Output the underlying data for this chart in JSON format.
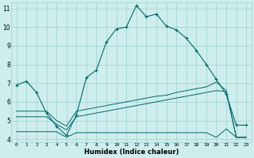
{
  "xlabel": "Humidex (Indice chaleur)",
  "bg_color": "#ceeeed",
  "grid_color": "#a0cece",
  "line_color": "#006868",
  "xlim": [
    -0.5,
    23.5
  ],
  "ylim": [
    3.85,
    11.3
  ],
  "xticks": [
    0,
    1,
    2,
    3,
    4,
    5,
    6,
    7,
    8,
    9,
    10,
    11,
    12,
    13,
    14,
    15,
    16,
    17,
    18,
    19,
    20,
    21,
    22,
    23
  ],
  "yticks": [
    4,
    5,
    6,
    7,
    8,
    9,
    10,
    11
  ],
  "curve1_x": [
    0,
    1,
    2,
    3,
    4,
    5,
    6,
    7,
    8,
    9,
    10,
    11,
    12,
    13,
    14,
    15,
    16,
    17,
    18,
    19,
    20,
    21,
    22,
    23
  ],
  "curve1_y": [
    6.9,
    7.1,
    6.5,
    5.4,
    4.7,
    4.2,
    5.3,
    7.3,
    7.7,
    9.2,
    9.9,
    10.0,
    11.15,
    10.55,
    10.7,
    10.05,
    9.85,
    9.4,
    8.75,
    8.0,
    7.2,
    6.4,
    4.75,
    4.75
  ],
  "curve2_x": [
    0,
    1,
    2,
    3,
    4,
    5,
    6,
    7,
    8,
    9,
    10,
    11,
    12,
    13,
    14,
    15,
    16,
    17,
    18,
    19,
    20,
    21,
    22,
    23
  ],
  "curve2_y": [
    5.5,
    5.5,
    5.5,
    5.5,
    5.0,
    4.7,
    5.5,
    5.6,
    5.7,
    5.8,
    5.9,
    6.0,
    6.1,
    6.2,
    6.3,
    6.35,
    6.5,
    6.6,
    6.7,
    6.8,
    7.05,
    6.6,
    4.1,
    4.1
  ],
  "curve3_x": [
    0,
    1,
    2,
    3,
    4,
    5,
    6,
    7,
    8,
    9,
    10,
    11,
    12,
    13,
    14,
    15,
    16,
    17,
    18,
    19,
    20,
    21,
    22,
    23
  ],
  "curve3_y": [
    5.2,
    5.2,
    5.2,
    5.2,
    4.8,
    4.5,
    5.2,
    5.3,
    5.4,
    5.5,
    5.6,
    5.7,
    5.8,
    5.9,
    6.0,
    6.1,
    6.2,
    6.3,
    6.4,
    6.5,
    6.6,
    6.55,
    4.1,
    4.1
  ],
  "curve4_x": [
    0,
    1,
    2,
    3,
    4,
    5,
    6,
    7,
    8,
    9,
    10,
    11,
    12,
    13,
    14,
    15,
    16,
    17,
    18,
    19,
    20,
    21,
    22,
    23
  ],
  "curve4_y": [
    4.4,
    4.4,
    4.4,
    4.4,
    4.4,
    4.1,
    4.35,
    4.35,
    4.35,
    4.35,
    4.35,
    4.35,
    4.35,
    4.35,
    4.35,
    4.35,
    4.35,
    4.35,
    4.35,
    4.35,
    4.1,
    4.55,
    4.1,
    4.1
  ]
}
